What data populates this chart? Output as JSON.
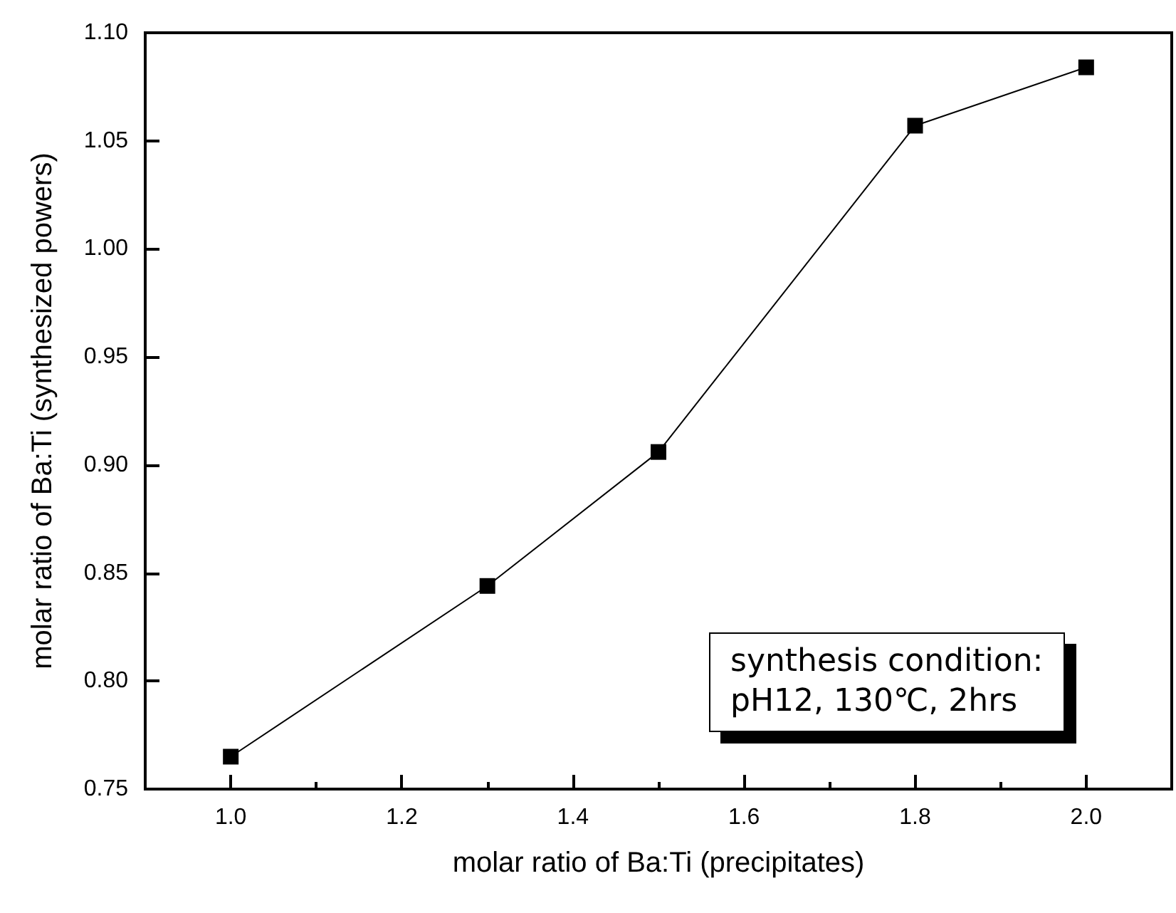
{
  "chart_data": {
    "type": "line",
    "xlabel": "molar ratio of Ba:Ti (precipitates)",
    "ylabel": "molar ratio of Ba:Ti (synthesized powers)",
    "x": [
      1.0,
      1.3,
      1.5,
      1.8,
      2.0
    ],
    "series": [
      {
        "color": "#000000",
        "values": [
          0.765,
          0.844,
          0.906,
          1.057,
          1.084
        ]
      }
    ],
    "xlim": [
      0.9,
      2.1
    ],
    "xticks": [
      {
        "value": 1.0,
        "label": "1.0"
      },
      1.2,
      1.4,
      1.6,
      1.8,
      {
        "value": 2.0,
        "label": "2.0"
      }
    ],
    "ylim": [
      0.75,
      1.1
    ],
    "yticks": [
      {
        "value": 0.75,
        "label": "0.75"
      },
      {
        "value": 0.8,
        "label": "0.80"
      },
      {
        "value": 0.85,
        "label": "0.85"
      },
      {
        "value": 0.9,
        "label": "0.90"
      },
      {
        "value": 0.95,
        "label": "0.95"
      },
      {
        "value": 1.0,
        "label": "1.00"
      },
      {
        "value": 1.05,
        "label": "1.05"
      },
      {
        "value": 1.1,
        "label": "1.10"
      }
    ],
    "annotations": [
      "synthesis condition:\npH12, 130℃, 2hrs"
    ],
    "marker": "square",
    "line_style": "solid",
    "grid": false
  }
}
